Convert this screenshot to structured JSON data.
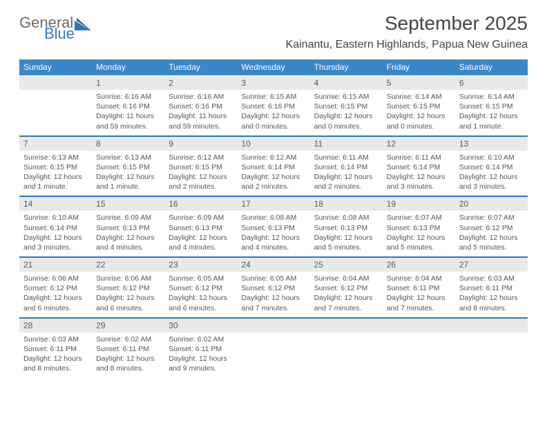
{
  "logo": {
    "text1": "General",
    "text2": "Blue",
    "color_gray": "#6c6c6c",
    "color_blue": "#2f78bd"
  },
  "title": "September 2025",
  "location": "Kainantu, Eastern Highlands, Papua New Guinea",
  "header_bg": "#3b86c8",
  "daynum_bg": "#e9e9e9",
  "dayNames": [
    "Sunday",
    "Monday",
    "Tuesday",
    "Wednesday",
    "Thursday",
    "Friday",
    "Saturday"
  ],
  "weeks": [
    {
      "nums": [
        "",
        "1",
        "2",
        "3",
        "4",
        "5",
        "6"
      ],
      "cells": [
        null,
        {
          "sunrise": "Sunrise: 6:16 AM",
          "sunset": "Sunset: 6:16 PM",
          "daylight": "Daylight: 11 hours and 59 minutes."
        },
        {
          "sunrise": "Sunrise: 6:16 AM",
          "sunset": "Sunset: 6:16 PM",
          "daylight": "Daylight: 11 hours and 59 minutes."
        },
        {
          "sunrise": "Sunrise: 6:15 AM",
          "sunset": "Sunset: 6:16 PM",
          "daylight": "Daylight: 12 hours and 0 minutes."
        },
        {
          "sunrise": "Sunrise: 6:15 AM",
          "sunset": "Sunset: 6:15 PM",
          "daylight": "Daylight: 12 hours and 0 minutes."
        },
        {
          "sunrise": "Sunrise: 6:14 AM",
          "sunset": "Sunset: 6:15 PM",
          "daylight": "Daylight: 12 hours and 0 minutes."
        },
        {
          "sunrise": "Sunrise: 6:14 AM",
          "sunset": "Sunset: 6:15 PM",
          "daylight": "Daylight: 12 hours and 1 minute."
        }
      ]
    },
    {
      "nums": [
        "7",
        "8",
        "9",
        "10",
        "11",
        "12",
        "13"
      ],
      "cells": [
        {
          "sunrise": "Sunrise: 6:13 AM",
          "sunset": "Sunset: 6:15 PM",
          "daylight": "Daylight: 12 hours and 1 minute."
        },
        {
          "sunrise": "Sunrise: 6:13 AM",
          "sunset": "Sunset: 6:15 PM",
          "daylight": "Daylight: 12 hours and 1 minute."
        },
        {
          "sunrise": "Sunrise: 6:12 AM",
          "sunset": "Sunset: 6:15 PM",
          "daylight": "Daylight: 12 hours and 2 minutes."
        },
        {
          "sunrise": "Sunrise: 6:12 AM",
          "sunset": "Sunset: 6:14 PM",
          "daylight": "Daylight: 12 hours and 2 minutes."
        },
        {
          "sunrise": "Sunrise: 6:11 AM",
          "sunset": "Sunset: 6:14 PM",
          "daylight": "Daylight: 12 hours and 2 minutes."
        },
        {
          "sunrise": "Sunrise: 6:11 AM",
          "sunset": "Sunset: 6:14 PM",
          "daylight": "Daylight: 12 hours and 3 minutes."
        },
        {
          "sunrise": "Sunrise: 6:10 AM",
          "sunset": "Sunset: 6:14 PM",
          "daylight": "Daylight: 12 hours and 3 minutes."
        }
      ]
    },
    {
      "nums": [
        "14",
        "15",
        "16",
        "17",
        "18",
        "19",
        "20"
      ],
      "cells": [
        {
          "sunrise": "Sunrise: 6:10 AM",
          "sunset": "Sunset: 6:14 PM",
          "daylight": "Daylight: 12 hours and 3 minutes."
        },
        {
          "sunrise": "Sunrise: 6:09 AM",
          "sunset": "Sunset: 6:13 PM",
          "daylight": "Daylight: 12 hours and 4 minutes."
        },
        {
          "sunrise": "Sunrise: 6:09 AM",
          "sunset": "Sunset: 6:13 PM",
          "daylight": "Daylight: 12 hours and 4 minutes."
        },
        {
          "sunrise": "Sunrise: 6:08 AM",
          "sunset": "Sunset: 6:13 PM",
          "daylight": "Daylight: 12 hours and 4 minutes."
        },
        {
          "sunrise": "Sunrise: 6:08 AM",
          "sunset": "Sunset: 6:13 PM",
          "daylight": "Daylight: 12 hours and 5 minutes."
        },
        {
          "sunrise": "Sunrise: 6:07 AM",
          "sunset": "Sunset: 6:13 PM",
          "daylight": "Daylight: 12 hours and 5 minutes."
        },
        {
          "sunrise": "Sunrise: 6:07 AM",
          "sunset": "Sunset: 6:12 PM",
          "daylight": "Daylight: 12 hours and 5 minutes."
        }
      ]
    },
    {
      "nums": [
        "21",
        "22",
        "23",
        "24",
        "25",
        "26",
        "27"
      ],
      "cells": [
        {
          "sunrise": "Sunrise: 6:06 AM",
          "sunset": "Sunset: 6:12 PM",
          "daylight": "Daylight: 12 hours and 6 minutes."
        },
        {
          "sunrise": "Sunrise: 6:06 AM",
          "sunset": "Sunset: 6:12 PM",
          "daylight": "Daylight: 12 hours and 6 minutes."
        },
        {
          "sunrise": "Sunrise: 6:05 AM",
          "sunset": "Sunset: 6:12 PM",
          "daylight": "Daylight: 12 hours and 6 minutes."
        },
        {
          "sunrise": "Sunrise: 6:05 AM",
          "sunset": "Sunset: 6:12 PM",
          "daylight": "Daylight: 12 hours and 7 minutes."
        },
        {
          "sunrise": "Sunrise: 6:04 AM",
          "sunset": "Sunset: 6:12 PM",
          "daylight": "Daylight: 12 hours and 7 minutes."
        },
        {
          "sunrise": "Sunrise: 6:04 AM",
          "sunset": "Sunset: 6:11 PM",
          "daylight": "Daylight: 12 hours and 7 minutes."
        },
        {
          "sunrise": "Sunrise: 6:03 AM",
          "sunset": "Sunset: 6:11 PM",
          "daylight": "Daylight: 12 hours and 8 minutes."
        }
      ]
    },
    {
      "nums": [
        "28",
        "29",
        "30",
        "",
        "",
        "",
        ""
      ],
      "cells": [
        {
          "sunrise": "Sunrise: 6:03 AM",
          "sunset": "Sunset: 6:11 PM",
          "daylight": "Daylight: 12 hours and 8 minutes."
        },
        {
          "sunrise": "Sunrise: 6:02 AM",
          "sunset": "Sunset: 6:11 PM",
          "daylight": "Daylight: 12 hours and 8 minutes."
        },
        {
          "sunrise": "Sunrise: 6:02 AM",
          "sunset": "Sunset: 6:11 PM",
          "daylight": "Daylight: 12 hours and 9 minutes."
        },
        null,
        null,
        null,
        null
      ]
    }
  ]
}
